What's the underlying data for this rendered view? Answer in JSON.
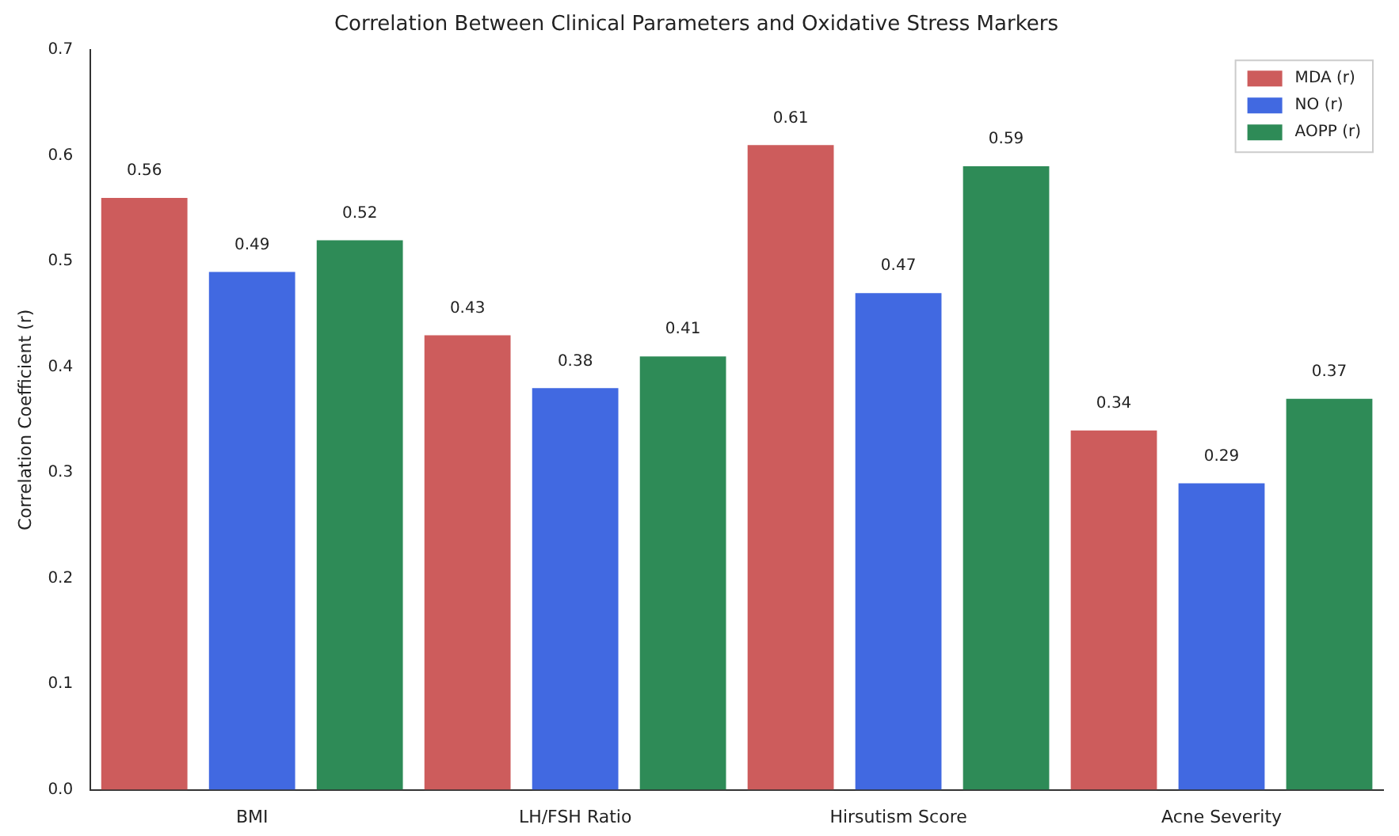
{
  "chart_data": {
    "type": "bar",
    "title": "Correlation Between Clinical Parameters and Oxidative Stress Markers",
    "ylabel": "Correlation Coefficient (r)",
    "categories": [
      "BMI",
      "LH/FSH Ratio",
      "Hirsutism Score",
      "Acne Severity"
    ],
    "series": [
      {
        "name": "MDA (r)",
        "color": "#cd5c5c",
        "values": [
          0.56,
          0.43,
          0.61,
          0.34
        ]
      },
      {
        "name": "NO (r)",
        "color": "#4169e1",
        "values": [
          0.49,
          0.38,
          0.47,
          0.29
        ]
      },
      {
        "name": "AOPP (r)",
        "color": "#2e8b57",
        "values": [
          0.52,
          0.41,
          0.59,
          0.37
        ]
      }
    ],
    "ylim": [
      0,
      0.7
    ],
    "yticks": [
      {
        "value": 0,
        "label": "0.0"
      },
      0.1,
      0.2,
      0.3,
      0.4,
      0.5,
      0.6,
      0.7
    ],
    "grid": false,
    "legend": "top right",
    "data_labels": true
  }
}
